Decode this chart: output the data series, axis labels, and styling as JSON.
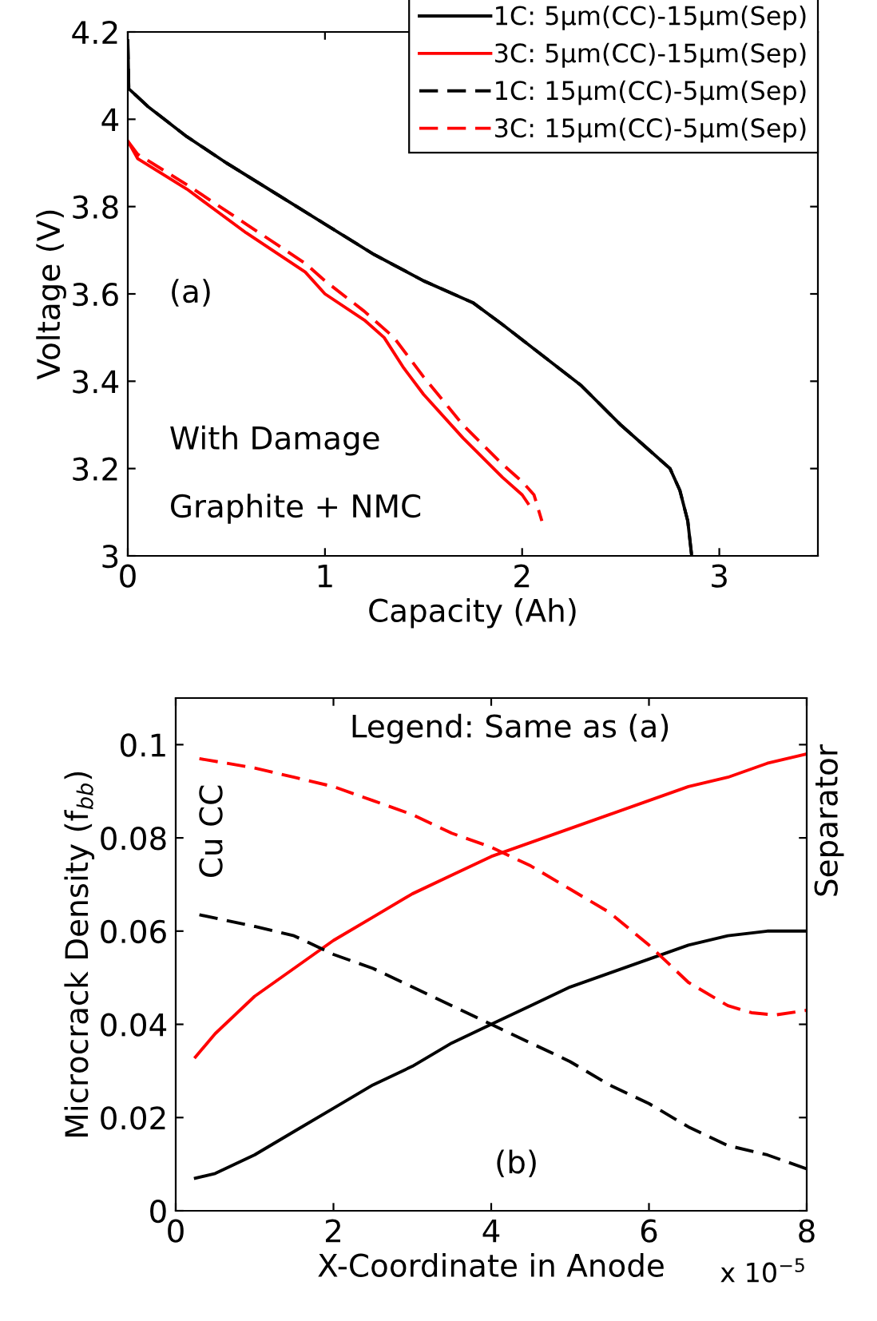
{
  "chart_data": [
    {
      "type": "line",
      "xlabel": "Capacity (Ah)",
      "ylabel": "Voltage (V)",
      "xlim": [
        0,
        3.5
      ],
      "ylim": [
        3,
        4.2
      ],
      "xticks": [
        0,
        1,
        2,
        3
      ],
      "yticks": [
        3,
        3.2,
        3.4,
        3.6,
        3.8,
        4,
        4.2
      ],
      "legend": "top right",
      "grid": false,
      "annotations": [
        "(a)",
        "With Damage",
        "Graphite + NMC"
      ],
      "series": [
        {
          "name": "1C: 5µm(CC)-15µm(Sep)",
          "color": "#000000",
          "line_style": "solid",
          "x": [
            0,
            0.005,
            0.1,
            0.3,
            0.5,
            0.75,
            1.0,
            1.25,
            1.5,
            1.75,
            1.9,
            2.1,
            2.3,
            2.5,
            2.65,
            2.75,
            2.8,
            2.84,
            2.86
          ],
          "values": [
            4.18,
            4.07,
            4.03,
            3.96,
            3.9,
            3.83,
            3.76,
            3.69,
            3.63,
            3.58,
            3.53,
            3.46,
            3.39,
            3.3,
            3.24,
            3.2,
            3.15,
            3.08,
            3.0
          ]
        },
        {
          "name": "3C: 5µm(CC)-15µm(Sep)",
          "color": "#ff0000",
          "line_style": "solid",
          "x": [
            0,
            0.05,
            0.3,
            0.6,
            0.9,
            1.0,
            1.2,
            1.3,
            1.4,
            1.5,
            1.7,
            1.9,
            2.0,
            2.03
          ],
          "values": [
            3.95,
            3.91,
            3.84,
            3.74,
            3.65,
            3.6,
            3.54,
            3.5,
            3.43,
            3.37,
            3.27,
            3.18,
            3.14,
            3.12
          ]
        },
        {
          "name": "1C: 15µm(CC)-5µm(Sep)",
          "color": "#000000",
          "line_style": "dashed",
          "x": [
            0,
            0.005,
            0.1,
            0.3,
            0.5,
            0.75,
            1.0,
            1.25,
            1.5,
            1.75,
            1.9,
            2.1,
            2.3,
            2.5,
            2.65,
            2.75,
            2.8,
            2.84,
            2.86
          ],
          "values": [
            4.18,
            4.07,
            4.03,
            3.96,
            3.9,
            3.83,
            3.76,
            3.69,
            3.63,
            3.58,
            3.53,
            3.46,
            3.39,
            3.3,
            3.24,
            3.2,
            3.15,
            3.08,
            3.0
          ]
        },
        {
          "name": "3C: 15µm(CC)-5µm(Sep)",
          "color": "#ff0000",
          "line_style": "dashed",
          "x": [
            0,
            0.05,
            0.3,
            0.6,
            0.9,
            1.0,
            1.2,
            1.35,
            1.5,
            1.7,
            1.9,
            2.0,
            2.06,
            2.1
          ],
          "values": [
            3.95,
            3.92,
            3.85,
            3.76,
            3.67,
            3.63,
            3.56,
            3.5,
            3.41,
            3.3,
            3.21,
            3.17,
            3.14,
            3.08
          ]
        }
      ]
    },
    {
      "type": "line",
      "xlabel": "X-Coordinate in Anode",
      "ylabel": "Microcrack Density (f$_{bb}$)",
      "xlim": [
        0,
        8
      ],
      "ylim": [
        0,
        0.11
      ],
      "xticks": [
        0,
        2,
        4,
        6,
        8
      ],
      "yticks": [
        0,
        0.02,
        0.04,
        0.06,
        0.08,
        0.1
      ],
      "grid": false,
      "annotations": [
        "x 10$^{−5}$",
        "Legend: Same as (a)",
        "(b)",
        "Cu CC",
        "Separator"
      ],
      "series": [
        {
          "color": "#000000",
          "line_style": "solid",
          "x": [
            0.25,
            0.5,
            1,
            1.5,
            2,
            2.5,
            3,
            3.5,
            4,
            4.5,
            5,
            5.5,
            6,
            6.5,
            7,
            7.5,
            8
          ],
          "values": [
            0.007,
            0.008,
            0.012,
            0.017,
            0.022,
            0.027,
            0.031,
            0.036,
            0.04,
            0.044,
            0.048,
            0.051,
            0.054,
            0.057,
            0.059,
            0.06,
            0.06
          ]
        },
        {
          "color": "#ff0000",
          "line_style": "solid",
          "x": [
            0.25,
            0.5,
            1,
            1.5,
            2,
            2.5,
            3,
            3.5,
            4,
            4.5,
            5,
            5.5,
            6,
            6.5,
            7,
            7.5,
            8
          ],
          "values": [
            0.033,
            0.038,
            0.046,
            0.052,
            0.058,
            0.063,
            0.068,
            0.072,
            0.076,
            0.079,
            0.082,
            0.085,
            0.088,
            0.091,
            0.093,
            0.096,
            0.098
          ]
        },
        {
          "color": "#000000",
          "line_style": "dashed",
          "x": [
            0.3,
            1,
            1.5,
            2,
            2.5,
            3,
            3.5,
            4,
            4.5,
            5,
            5.5,
            6,
            6.5,
            7,
            7.5,
            8
          ],
          "values": [
            0.0635,
            0.061,
            0.059,
            0.055,
            0.052,
            0.048,
            0.044,
            0.04,
            0.036,
            0.032,
            0.027,
            0.023,
            0.018,
            0.014,
            0.012,
            0.009
          ]
        },
        {
          "color": "#ff0000",
          "line_style": "dashed",
          "x": [
            0.3,
            1,
            1.5,
            2,
            2.5,
            3,
            3.5,
            4,
            4.5,
            5,
            5.5,
            6,
            6.5,
            7,
            7.3,
            7.6,
            8
          ],
          "values": [
            0.097,
            0.095,
            0.093,
            0.091,
            0.088,
            0.085,
            0.081,
            0.078,
            0.074,
            0.069,
            0.064,
            0.057,
            0.049,
            0.044,
            0.0425,
            0.042,
            0.043
          ]
        }
      ]
    }
  ]
}
